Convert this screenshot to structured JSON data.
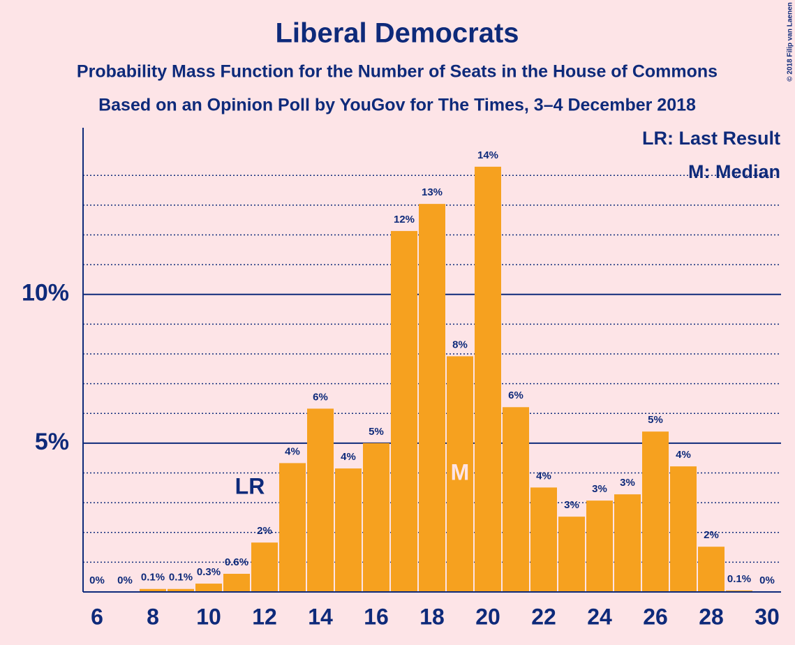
{
  "chart_data": {
    "type": "bar",
    "title": "Liberal Democrats",
    "subtitle": "Probability Mass Function for the Number of Seats in the House of Commons",
    "subtitle2": "Based on an Opinion Poll by YouGov for The Times, 3–4 December 2018",
    "copyright": "© 2018 Filip van Laenen",
    "legend": [
      "LR: Last Result",
      "M: Median"
    ],
    "legend_position": "upper right",
    "x": [
      6,
      7,
      8,
      9,
      10,
      11,
      12,
      13,
      14,
      15,
      16,
      17,
      18,
      19,
      20,
      21,
      22,
      23,
      24,
      25,
      26,
      27,
      28,
      29,
      30
    ],
    "values": [
      0,
      0,
      0.1,
      0.1,
      0.28,
      0.61,
      1.66,
      4.33,
      6.16,
      4.15,
      5.0,
      12.13,
      13.04,
      7.92,
      14.29,
      6.21,
      3.51,
      2.53,
      3.07,
      3.28,
      5.39,
      4.22,
      1.52,
      0.05,
      0
    ],
    "value_labels": [
      "0%",
      "0%",
      "0.1%",
      "0.1%",
      "0.3%",
      "0.6%",
      "2%",
      "4%",
      "6%",
      "4%",
      "5%",
      "12%",
      "13%",
      "8%",
      "14%",
      "6%",
      "4%",
      "3%",
      "3%",
      "3%",
      "5%",
      "4%",
      "2%",
      "0.1%",
      "0%"
    ],
    "color": "#f6a11f",
    "xlim": [
      5.5,
      30.5
    ],
    "xticks": [
      6,
      8,
      10,
      12,
      14,
      16,
      18,
      20,
      22,
      24,
      26,
      28,
      30
    ],
    "ylim": [
      0,
      15.6
    ],
    "yticks": [
      {
        "value": 5,
        "label": "5%"
      },
      {
        "value": 10,
        "label": "10%"
      }
    ],
    "minor_yticks": [
      1,
      2,
      3,
      4,
      6,
      7,
      8,
      9,
      11,
      12,
      13,
      14
    ],
    "grid": true,
    "annotations": [
      {
        "text": "LR",
        "x": 12
      },
      {
        "text": "M",
        "x": 19
      }
    ]
  }
}
